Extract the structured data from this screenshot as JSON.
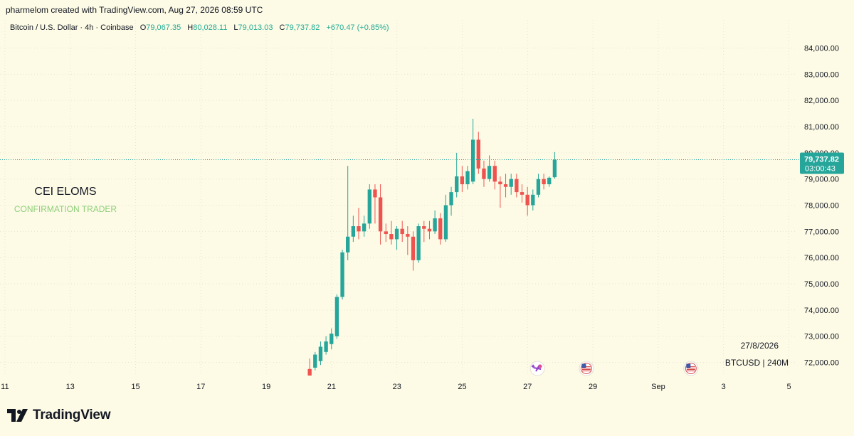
{
  "header": {
    "attribution": "pharmelom created with TradingView.com, Aug 27, 2026 08:59 UTC"
  },
  "legend": {
    "symbol": "Bitcoin / U.S. Dollar · 4h · Coinbase",
    "o_label": "O",
    "o_value": "79,067.35",
    "h_label": "H",
    "h_value": "80,028.11",
    "l_label": "L",
    "l_value": "79,013.03",
    "c_label": "C",
    "c_value": "79,737.82",
    "change": "+670.47 (+0.85%)"
  },
  "watermark": {
    "title": "CEI ELOMS",
    "subtitle": "CONFIRMATION TRADER"
  },
  "price_tag": {
    "price": "79,737.82",
    "countdown": "03:00:43",
    "value": 79737.82
  },
  "corner_info": {
    "date": "27/8/2026",
    "symbol": "BTCUSD | 240M"
  },
  "brand": {
    "name": "TradingView"
  },
  "colors": {
    "up": "#26a69a",
    "down": "#ef5350",
    "accent": "#22ab94",
    "background": "#fdfbe6",
    "grid": "#e8e6d2"
  },
  "events": [
    {
      "icon": "crypto-event-icon",
      "day": 27.3
    },
    {
      "icon": "us-flag-icon",
      "day": 28.8
    },
    {
      "icon": "us-flag-icon",
      "day": 32.0
    }
  ],
  "chart_data": {
    "type": "candlestick",
    "title": "",
    "xlabel": "",
    "ylabel": "",
    "ylim": [
      71500,
      84800
    ],
    "xlim_days": [
      10.85,
      35.25
    ],
    "y_ticks": [
      "72,000.00",
      "73,000.00",
      "74,000.00",
      "75,000.00",
      "76,000.00",
      "77,000.00",
      "78,000.00",
      "79,000.00",
      "80,000.00",
      "81,000.00",
      "82,000.00",
      "83,000.00",
      "84,000.00"
    ],
    "y_tick_values": [
      72000,
      73000,
      74000,
      75000,
      76000,
      77000,
      78000,
      79000,
      80000,
      81000,
      82000,
      83000,
      84000
    ],
    "x_ticks": [
      "11",
      "13",
      "15",
      "17",
      "19",
      "21",
      "23",
      "25",
      "27",
      "29",
      "Sep",
      "3",
      "5"
    ],
    "x_tick_days": [
      11,
      13,
      15,
      17,
      19,
      21,
      23,
      25,
      27,
      29,
      31,
      33,
      35
    ],
    "grid": true,
    "candle_interval": "4h",
    "first_candle_day": 20.33,
    "candles": [
      {
        "o": 71750,
        "h": 72150,
        "l": 71450,
        "c": 71450
      },
      {
        "o": 71800,
        "h": 72400,
        "l": 71700,
        "c": 72300
      },
      {
        "o": 72050,
        "h": 72800,
        "l": 71900,
        "c": 72600
      },
      {
        "o": 72400,
        "h": 73000,
        "l": 72300,
        "c": 72800
      },
      {
        "o": 72700,
        "h": 73300,
        "l": 72500,
        "c": 73100
      },
      {
        "o": 73000,
        "h": 74600,
        "l": 72900,
        "c": 74500
      },
      {
        "o": 74500,
        "h": 76300,
        "l": 74400,
        "c": 76200
      },
      {
        "o": 76200,
        "h": 79500,
        "l": 75900,
        "c": 76800
      },
      {
        "o": 76800,
        "h": 77600,
        "l": 76600,
        "c": 77200
      },
      {
        "o": 77200,
        "h": 77900,
        "l": 76700,
        "c": 77000
      },
      {
        "o": 77000,
        "h": 77600,
        "l": 76800,
        "c": 77300
      },
      {
        "o": 77300,
        "h": 78800,
        "l": 77100,
        "c": 78600
      },
      {
        "o": 78600,
        "h": 78800,
        "l": 77300,
        "c": 78300
      },
      {
        "o": 78300,
        "h": 78800,
        "l": 76500,
        "c": 77000
      },
      {
        "o": 77000,
        "h": 77300,
        "l": 76600,
        "c": 76900
      },
      {
        "o": 76900,
        "h": 77400,
        "l": 76500,
        "c": 76700
      },
      {
        "o": 76700,
        "h": 77200,
        "l": 76300,
        "c": 77100
      },
      {
        "o": 77100,
        "h": 77400,
        "l": 76600,
        "c": 76900
      },
      {
        "o": 76900,
        "h": 77200,
        "l": 76100,
        "c": 76800
      },
      {
        "o": 76800,
        "h": 77000,
        "l": 75500,
        "c": 75900
      },
      {
        "o": 75900,
        "h": 77300,
        "l": 75800,
        "c": 77200
      },
      {
        "o": 77200,
        "h": 77400,
        "l": 76600,
        "c": 77100
      },
      {
        "o": 77100,
        "h": 77400,
        "l": 76700,
        "c": 77000
      },
      {
        "o": 77000,
        "h": 77800,
        "l": 76900,
        "c": 77500
      },
      {
        "o": 77500,
        "h": 77700,
        "l": 76500,
        "c": 76700
      },
      {
        "o": 76700,
        "h": 78400,
        "l": 76600,
        "c": 78000
      },
      {
        "o": 78000,
        "h": 78700,
        "l": 77600,
        "c": 78500
      },
      {
        "o": 78500,
        "h": 80000,
        "l": 78300,
        "c": 79100
      },
      {
        "o": 79100,
        "h": 79500,
        "l": 78500,
        "c": 78800
      },
      {
        "o": 78800,
        "h": 79500,
        "l": 78600,
        "c": 79300
      },
      {
        "o": 78900,
        "h": 81300,
        "l": 78800,
        "c": 80500
      },
      {
        "o": 80500,
        "h": 80800,
        "l": 79200,
        "c": 79400
      },
      {
        "o": 79400,
        "h": 79700,
        "l": 78700,
        "c": 79000
      },
      {
        "o": 79000,
        "h": 79900,
        "l": 78900,
        "c": 79500
      },
      {
        "o": 79500,
        "h": 79700,
        "l": 78600,
        "c": 78900
      },
      {
        "o": 78900,
        "h": 79100,
        "l": 77900,
        "c": 78800
      },
      {
        "o": 78800,
        "h": 79200,
        "l": 78300,
        "c": 78700
      },
      {
        "o": 78700,
        "h": 79200,
        "l": 78400,
        "c": 79000
      },
      {
        "o": 79000,
        "h": 79200,
        "l": 78300,
        "c": 78500
      },
      {
        "o": 78500,
        "h": 78800,
        "l": 78100,
        "c": 78400
      },
      {
        "o": 78400,
        "h": 78700,
        "l": 77600,
        "c": 78000
      },
      {
        "o": 78000,
        "h": 78600,
        "l": 77800,
        "c": 78400
      },
      {
        "o": 78400,
        "h": 79200,
        "l": 78300,
        "c": 79000
      },
      {
        "o": 79000,
        "h": 79200,
        "l": 78600,
        "c": 78800
      },
      {
        "o": 78800,
        "h": 79100,
        "l": 78700,
        "c": 79050
      },
      {
        "o": 79067.35,
        "h": 80028.11,
        "l": 79013.03,
        "c": 79737.82
      }
    ]
  }
}
